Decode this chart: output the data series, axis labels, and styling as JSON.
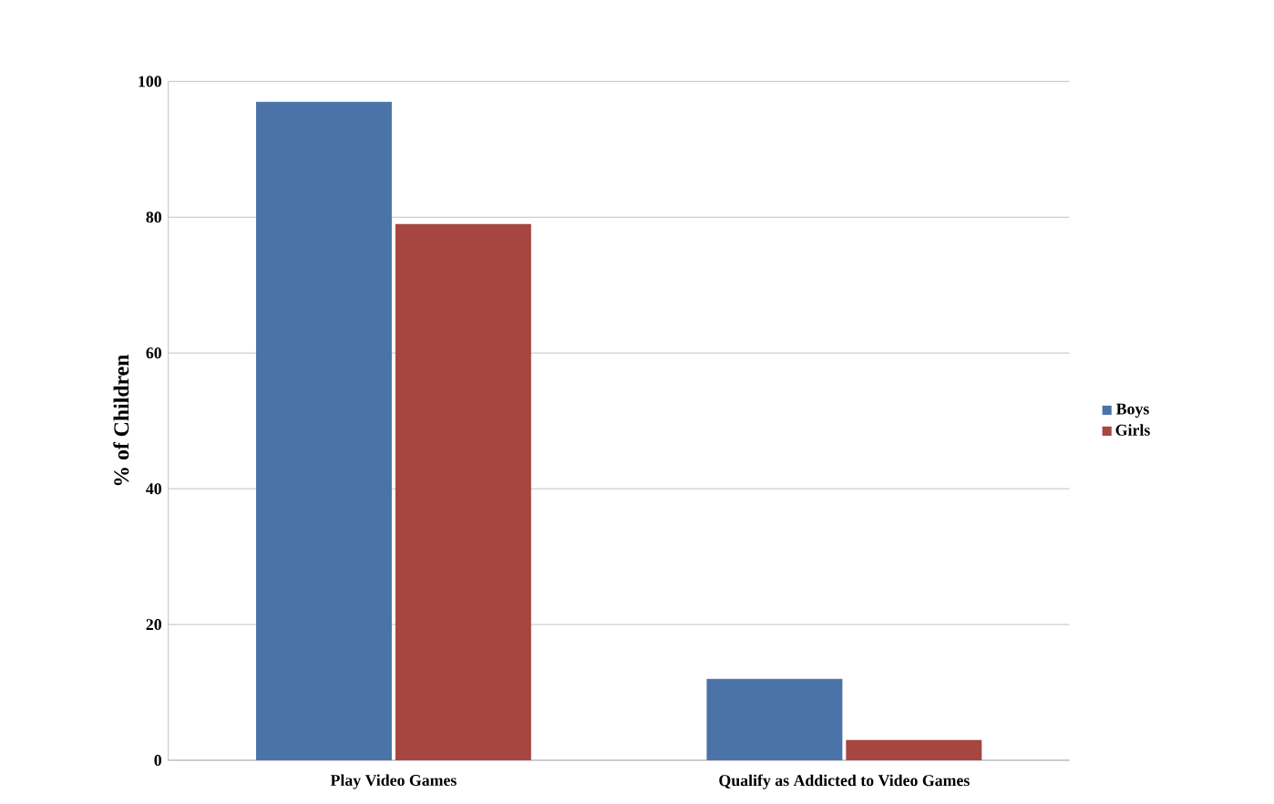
{
  "chart_data": {
    "type": "bar",
    "ylabel": "% of Children",
    "categories": [
      "Play Video Games",
      "Qualify as Addicted to Video Games"
    ],
    "series": [
      {
        "name": "Boys",
        "color": "#4a74a8",
        "values": [
          97,
          12
        ]
      },
      {
        "name": "Girls",
        "color": "#a64641",
        "values": [
          79,
          3
        ]
      }
    ],
    "ylim": [
      0,
      100
    ],
    "yticks": [
      0,
      20,
      40,
      60,
      80,
      100
    ],
    "grid": "y",
    "legend": "right"
  }
}
